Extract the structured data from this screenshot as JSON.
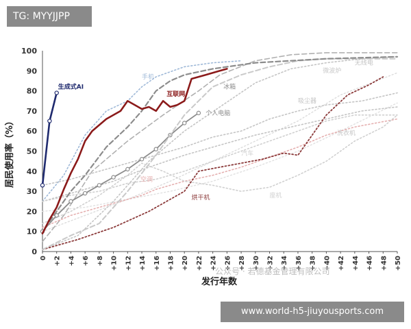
{
  "tag": {
    "text": "TG: MYYJJPP"
  },
  "watermark": {
    "text": "公众号 · 若德基金管理有限公司"
  },
  "banner": {
    "text": "www.world-h5-jiuyousports.com"
  },
  "chart_data": {
    "type": "line",
    "title": "",
    "xlabel": "发行年数",
    "ylabel": "居民使用率（%）",
    "xlim": [
      0,
      50
    ],
    "ylim": [
      0,
      100
    ],
    "x_ticks": [
      "0",
      "+2",
      "+4",
      "+6",
      "+8",
      "+10",
      "+12",
      "+14",
      "+16",
      "+18",
      "+20",
      "+22",
      "+24",
      "+26",
      "+28",
      "+30",
      "+32",
      "+34",
      "+36",
      "+38",
      "+40",
      "+42",
      "+44",
      "+46",
      "+48",
      "+50"
    ],
    "y_ticks": [
      0,
      10,
      20,
      30,
      40,
      50,
      60,
      70,
      80,
      90,
      100
    ],
    "series": [
      {
        "name": "生成式AI",
        "color": "#1f2a6e",
        "style": "solid",
        "width": 2.6,
        "markers": true,
        "label_xy": [
          2.2,
          81
        ],
        "x": [
          0,
          1,
          2
        ],
        "y": [
          33,
          65,
          79
        ]
      },
      {
        "name": "互联网",
        "color": "#8b1a1a",
        "style": "solid",
        "width": 2.6,
        "markers": false,
        "label_xy": [
          17.5,
          77.5
        ],
        "x": [
          0,
          1,
          2,
          3,
          4,
          5,
          6,
          7,
          8,
          9,
          10,
          11,
          12,
          13,
          14,
          15,
          16,
          17,
          18,
          19,
          20,
          21,
          22,
          23,
          24,
          25,
          26
        ],
        "y": [
          9,
          16,
          22,
          31,
          39,
          46,
          55,
          60,
          63,
          66,
          68,
          70,
          75,
          73,
          71,
          72,
          70,
          75,
          72,
          73,
          75,
          86,
          87,
          88,
          89,
          90,
          91
        ]
      },
      {
        "name": "个人电脑",
        "color": "#8c8c8c",
        "style": "solid",
        "width": 1.8,
        "markers": true,
        "label_xy": [
          23,
          68
        ],
        "x": [
          0,
          2,
          4,
          6,
          8,
          10,
          12,
          14,
          16,
          18,
          20,
          22
        ],
        "y": [
          10,
          18,
          25,
          29,
          33,
          37,
          41,
          46,
          51,
          58,
          64,
          69
        ]
      },
      {
        "name": "手机",
        "color": "#9fb9d8",
        "style": "dotted",
        "width": 1.6,
        "markers": false,
        "label_xy": [
          14,
          86
        ],
        "x": [
          0,
          3,
          6,
          9,
          12,
          14,
          16,
          20,
          24,
          28
        ],
        "y": [
          25,
          38,
          58,
          70,
          75,
          82,
          87,
          92,
          94,
          95
        ]
      },
      {
        "name": "冰箱",
        "color": "#8c8c8c",
        "style": "dashed",
        "width": 2.2,
        "markers": false,
        "label_xy": [
          25.5,
          81
        ],
        "x": [
          1,
          4,
          6,
          9,
          12,
          14,
          16,
          18,
          20,
          24,
          30,
          40,
          50
        ],
        "y": [
          15,
          30,
          38,
          52,
          62,
          70,
          80,
          85,
          88,
          91,
          94,
          96,
          97
        ]
      },
      {
        "name": "微波炉",
        "color": "#c9c9c9",
        "style": "dashed",
        "width": 2.0,
        "markers": false,
        "label_xy": [
          39.5,
          89
        ],
        "x": [
          0,
          4,
          8,
          12,
          16,
          20,
          24,
          28,
          32,
          36,
          40,
          44,
          50
        ],
        "y": [
          1,
          8,
          14,
          30,
          48,
          68,
          82,
          88,
          92,
          95,
          96,
          96,
          96
        ]
      },
      {
        "name": "",
        "color": "#b0b0b0",
        "style": "dashed",
        "width": 1.6,
        "markers": false,
        "x": [
          0,
          3,
          7,
          12,
          17,
          22,
          25,
          30,
          35,
          40,
          50
        ],
        "y": [
          5,
          18,
          40,
          55,
          68,
          80,
          88,
          95,
          98,
          99,
          99
        ]
      },
      {
        "name": "无线电",
        "color": "#c4c4c4",
        "style": "dotted",
        "width": 1.6,
        "markers": false,
        "label_xy": [
          44,
          93
        ],
        "x": [
          0,
          5,
          10,
          15,
          20,
          25,
          30,
          35,
          40,
          45,
          50
        ],
        "y": [
          1,
          8,
          25,
          45,
          60,
          72,
          84,
          91,
          94,
          96,
          97
        ]
      },
      {
        "name": "吸尘器",
        "color": "#c4c4c4",
        "style": "dotted",
        "width": 1.6,
        "markers": false,
        "label_xy": [
          36,
          74
        ],
        "x": [
          0,
          4,
          8,
          12,
          16,
          20,
          24,
          28,
          32,
          36,
          40,
          45,
          50
        ],
        "y": [
          33,
          36,
          40,
          44,
          48,
          52,
          57,
          60,
          66,
          70,
          73,
          75,
          79
        ]
      },
      {
        "name": "洗衣机",
        "color": "#c4c4c4",
        "style": "dotted",
        "width": 1.6,
        "markers": false,
        "label_xy": [
          41.5,
          58
        ],
        "x": [
          0,
          5,
          10,
          15,
          20,
          25,
          30,
          35,
          40,
          45,
          50
        ],
        "y": [
          25,
          30,
          35,
          42,
          48,
          53,
          58,
          62,
          66,
          70,
          72
        ]
      },
      {
        "name": "汽车",
        "color": "#d0d0d0",
        "style": "dotted",
        "width": 1.6,
        "markers": false,
        "label_xy": [
          28,
          48
        ],
        "x": [
          0,
          4,
          8,
          12,
          16,
          20,
          24,
          28,
          32,
          36,
          40,
          44,
          50
        ],
        "y": [
          25,
          28,
          30,
          34,
          36,
          40,
          45,
          50,
          55,
          60,
          65,
          68,
          68
        ]
      },
      {
        "name": "空调",
        "color": "#e5b0b0",
        "style": "dotted",
        "width": 1.6,
        "markers": false,
        "label_xy": [
          13.8,
          35
        ],
        "x": [
          0,
          4,
          8,
          12,
          14,
          16,
          20,
          24,
          28,
          32,
          36,
          40,
          44,
          50
        ],
        "y": [
          12,
          18,
          22,
          26,
          28,
          31,
          35,
          38,
          42,
          47,
          52,
          58,
          62,
          66
        ]
      },
      {
        "name": "烘干机",
        "color": "#8b3a3a",
        "style": "dotted",
        "width": 1.8,
        "markers": false,
        "label_xy": [
          21,
          26
        ],
        "x": [
          0,
          5,
          10,
          15,
          20,
          22,
          25,
          28,
          31,
          34,
          36,
          38,
          40,
          43,
          46,
          48
        ],
        "y": [
          1,
          6,
          12,
          20,
          30,
          40,
          42,
          44,
          46,
          49,
          48,
          58,
          68,
          78,
          83,
          87
        ]
      },
      {
        "name": "座机",
        "color": "#d0d0d0",
        "style": "dotted",
        "width": 1.6,
        "markers": false,
        "label_xy": [
          32,
          27
        ],
        "x": [
          0,
          4,
          8,
          12,
          14,
          17,
          20,
          24,
          28,
          32,
          36,
          40,
          44,
          48,
          50
        ],
        "y": [
          14,
          20,
          28,
          38,
          44,
          40,
          35,
          33,
          30,
          32,
          38,
          45,
          55,
          62,
          68
        ]
      },
      {
        "name": "",
        "color": "#dcdcdc",
        "style": "dotted",
        "width": 1.4,
        "markers": false,
        "x": [
          0,
          6,
          12,
          18,
          24,
          30,
          36,
          42,
          50
        ],
        "y": [
          10,
          18,
          26,
          35,
          45,
          55,
          65,
          78,
          89
        ]
      },
      {
        "name": "",
        "color": "#e0e0e0",
        "style": "dotted",
        "width": 1.4,
        "markers": false,
        "x": [
          0,
          6,
          12,
          18,
          24,
          30,
          36,
          42,
          50
        ],
        "y": [
          20,
          22,
          26,
          30,
          35,
          42,
          50,
          60,
          74
        ]
      }
    ]
  }
}
